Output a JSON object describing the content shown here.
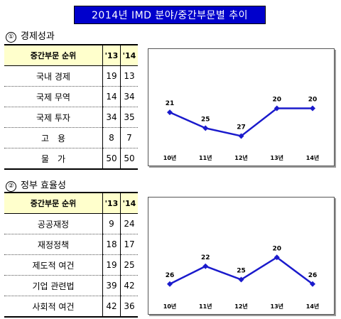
{
  "title": "2014년 IMD 분야/중간부문별 추이",
  "colors": {
    "title_bg": "#0000cc",
    "header_bg": "#ffffcc",
    "line": "#1a1acc"
  },
  "sections": [
    {
      "num": "①",
      "heading": "경제성과",
      "table": {
        "headers": [
          "중간부문 순위",
          "'13",
          "'14"
        ],
        "rows": [
          {
            "name": "국내 경제",
            "v13": "19",
            "v14": "13"
          },
          {
            "name": "국제 무역",
            "v13": "14",
            "v14": "34"
          },
          {
            "name": "국제 투자",
            "v13": "34",
            "v14": "35"
          },
          {
            "name": "고　용",
            "v13": "8",
            "v14": "7"
          },
          {
            "name": "물　가",
            "v13": "50",
            "v14": "50"
          }
        ]
      }
    },
    {
      "num": "②",
      "heading": "정부 효율성",
      "table": {
        "headers": [
          "중간부문 순위",
          "'13",
          "'14"
        ],
        "rows": [
          {
            "name": "공공재정",
            "v13": "9",
            "v14": "24"
          },
          {
            "name": "재정정책",
            "v13": "18",
            "v14": "17"
          },
          {
            "name": "제도적 여건",
            "v13": "19",
            "v14": "25"
          },
          {
            "name": "기업 관련법",
            "v13": "39",
            "v14": "42"
          },
          {
            "name": "사회적 여건",
            "v13": "42",
            "v14": "36"
          }
        ]
      }
    }
  ],
  "chart_data": [
    {
      "type": "line",
      "categories": [
        "10년",
        "11년",
        "12년",
        "13년",
        "14년"
      ],
      "values": [
        21,
        25,
        27,
        20,
        20
      ],
      "axis_inverted": true,
      "grid": false
    },
    {
      "type": "line",
      "categories": [
        "10년",
        "11년",
        "12년",
        "13년",
        "14년"
      ],
      "values": [
        26,
        22,
        25,
        20,
        26
      ],
      "axis_inverted": true,
      "grid": false
    }
  ]
}
